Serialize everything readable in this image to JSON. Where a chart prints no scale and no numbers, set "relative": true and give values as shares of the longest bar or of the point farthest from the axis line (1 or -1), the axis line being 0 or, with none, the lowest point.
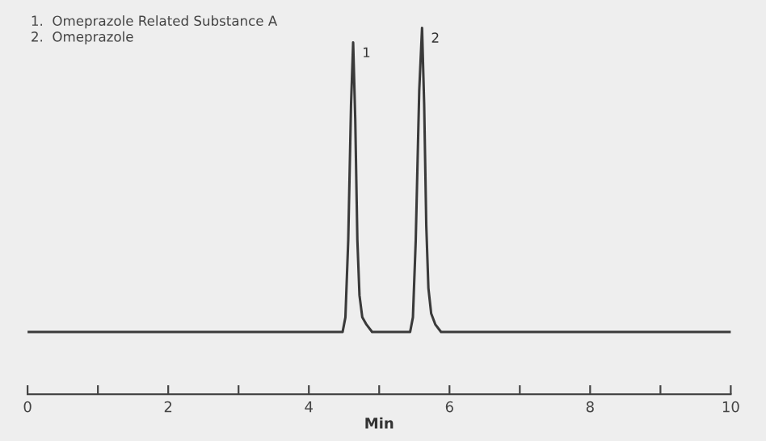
{
  "chart_data": {
    "type": "line",
    "relative": true,
    "xlabel": "Min",
    "x": [
      0,
      4.48,
      4.52,
      4.56,
      4.6,
      4.63,
      4.66,
      4.69,
      4.72,
      4.76,
      4.82,
      4.9,
      5.44,
      5.48,
      5.52,
      5.57,
      5.61,
      5.64,
      5.67,
      5.7,
      5.74,
      5.8,
      5.88,
      10
    ],
    "series": [
      {
        "color": "#3a3a3a",
        "values": [
          0.17,
          0.17,
          0.21,
          0.42,
          0.79,
          0.96,
          0.75,
          0.42,
          0.27,
          0.21,
          0.19,
          0.17,
          0.17,
          0.21,
          0.42,
          0.83,
          1,
          0.79,
          0.46,
          0.29,
          0.22,
          0.19,
          0.17,
          0.17
        ]
      }
    ],
    "xlim": [
      0,
      10
    ],
    "xticks": [
      0,
      {
        "value": 1,
        "label": null
      },
      2,
      {
        "value": 3,
        "label": null
      },
      4,
      {
        "value": 5,
        "label": null
      },
      6,
      {
        "value": 7,
        "label": null
      },
      8,
      {
        "value": 9,
        "label": null
      },
      10
    ],
    "tick_labels": "x",
    "grid": false,
    "legend": false,
    "annotations": [
      "1.  Omeprazole Related Substance A",
      "2.  Omeprazole",
      {
        "text": "1",
        "x": 4.63,
        "y": 0.96
      },
      {
        "text": "2",
        "x": 5.61,
        "y": 1
      }
    ]
  }
}
